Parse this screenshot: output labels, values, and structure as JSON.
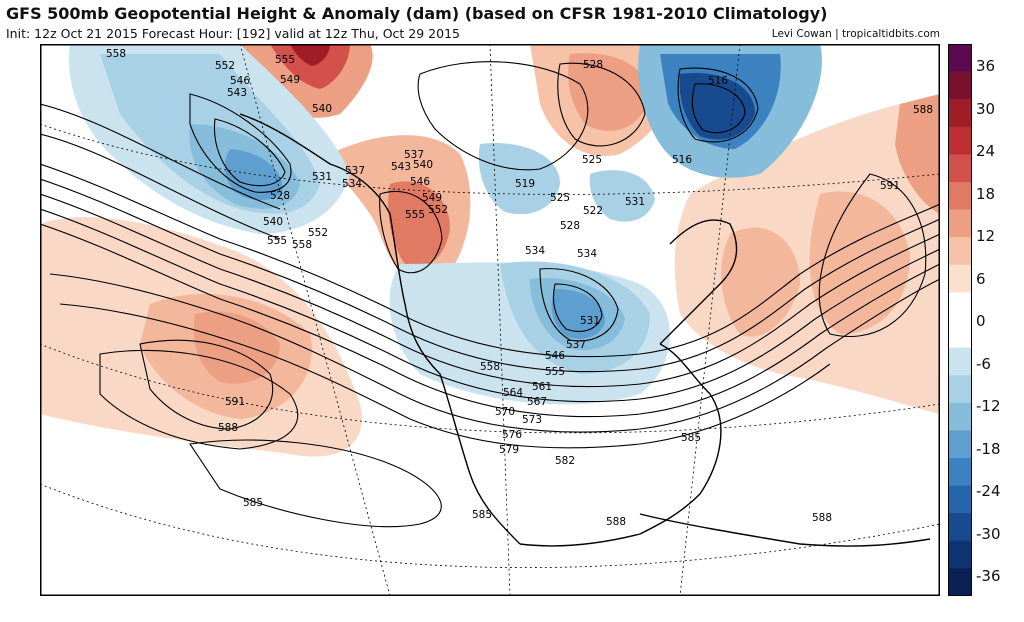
{
  "header": {
    "title": "GFS 500mb Geopotential Height & Anomaly (dam) (based on CFSR 1981-2010 Climatology)",
    "subtitle": "Init: 12z Oct 21 2015   Forecast Hour: [192]   valid at 12z Thu, Oct 29 2015",
    "credit": "Levi Cowan | tropicaltidbits.com"
  },
  "colorbar": {
    "ticks": [
      "36",
      "30",
      "24",
      "18",
      "12",
      "6",
      "0",
      "-6",
      "-12",
      "-18",
      "-24",
      "-30",
      "-36"
    ],
    "colors": [
      "#5c0a4f",
      "#7a1030",
      "#9e1d27",
      "#bd2f33",
      "#d2514a",
      "#e17a63",
      "#ec9f82",
      "#f6c3a9",
      "#fbe0cf",
      "#ffffff",
      "#ffffff",
      "#cbe3ef",
      "#a9d1e6",
      "#86bddb",
      "#5f9fcf",
      "#3c82c0",
      "#2565ab",
      "#174a8f",
      "#0f3472",
      "#0a2153"
    ]
  },
  "contour_labels": [
    "558",
    "552",
    "555",
    "546",
    "549",
    "543",
    "540",
    "537",
    "543",
    "540",
    "531",
    "534",
    "528",
    "537",
    "546",
    "549",
    "552",
    "555",
    "540",
    "555",
    "552",
    "558",
    "528",
    "525",
    "519",
    "525",
    "522",
    "531",
    "516",
    "516",
    "528",
    "534",
    "534",
    "531",
    "537",
    "546",
    "558",
    "555",
    "564",
    "561",
    "567",
    "570",
    "573",
    "576",
    "579",
    "582",
    "585",
    "591",
    "588",
    "591",
    "588",
    "585",
    "585",
    "588",
    "588"
  ]
}
